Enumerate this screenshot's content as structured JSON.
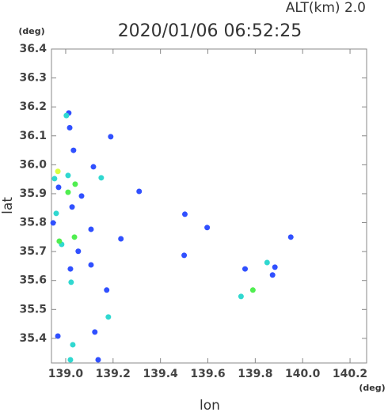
{
  "chart_data": {
    "type": "scatter",
    "title": "2020/01/06 06:52:25",
    "subtitle": "ALT(km)  2.0",
    "x_label": "lon",
    "y_label": "lat",
    "x_unit": "(deg)",
    "y_unit": "(deg)",
    "xlim": [
      138.94,
      140.27
    ],
    "ylim": [
      35.315,
      36.4
    ],
    "xticks": [
      {
        "value": 139,
        "label": "139.0"
      },
      139.2,
      139.4,
      139.6,
      139.8,
      {
        "value": 140,
        "label": "140.0"
      },
      140.2
    ],
    "yticks": [
      35.4,
      35.5,
      35.6,
      35.7,
      35.8,
      35.9,
      {
        "value": 36,
        "label": "36.0"
      },
      36.1,
      36.2,
      36.3,
      36.4
    ],
    "series": [
      {
        "color": "#3050ff",
        "x": [
          139.013,
          139.017,
          139.033,
          139.19,
          138.97,
          139.067,
          139.117,
          139.31,
          139.027,
          138.947,
          139.107,
          139.053,
          139.02,
          139.107,
          139.173,
          139.233,
          139.503,
          139.5,
          139.597,
          139.757,
          139.873,
          139.883,
          139.95,
          139.123,
          138.967,
          139.137
        ],
        "y": [
          36.179,
          36.128,
          36.05,
          36.097,
          35.922,
          35.892,
          35.993,
          35.908,
          35.854,
          35.799,
          35.777,
          35.701,
          35.64,
          35.654,
          35.567,
          35.744,
          35.829,
          35.687,
          35.783,
          35.64,
          35.619,
          35.646,
          35.75,
          35.422,
          35.408,
          35.326
        ]
      },
      {
        "color": "#30d8d0",
        "x": [
          139.003,
          139.01,
          138.953,
          139.15,
          138.96,
          138.983,
          139.023,
          139.85,
          139.74,
          139.18,
          139.03,
          139.02
        ],
        "y": [
          36.17,
          35.963,
          35.952,
          35.955,
          35.832,
          35.725,
          35.594,
          35.662,
          35.545,
          35.474,
          35.378,
          35.326
        ]
      },
      {
        "color": "#50ee50",
        "x": [
          139.04,
          139.01,
          138.973,
          139.037,
          139.79
        ],
        "y": [
          35.933,
          35.905,
          35.736,
          35.75,
          35.567
        ]
      },
      {
        "color": "#d8ff40",
        "x": [
          138.967
        ],
        "y": [
          35.977
        ]
      }
    ]
  }
}
